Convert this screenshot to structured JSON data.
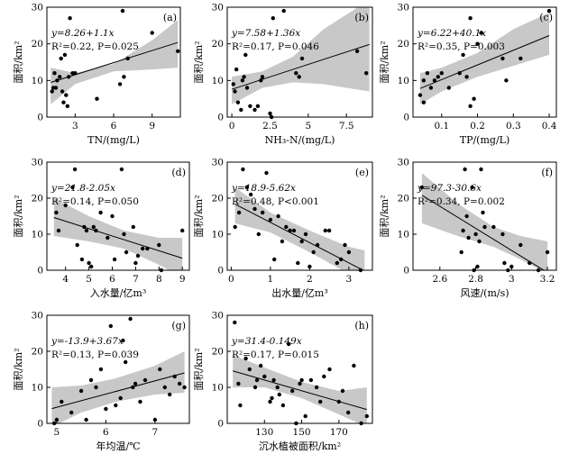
{
  "chart_data": [
    {
      "type": "scatter",
      "panel": "(a)",
      "xlabel": "TN/(mg/L)",
      "ylabel": "面积/km²",
      "xlim": [
        0.8,
        11.2
      ],
      "ylim": [
        0,
        30
      ],
      "xticks": [
        3,
        6,
        9
      ],
      "yticks": [
        0,
        10,
        20,
        30
      ],
      "equation": "y=8.26+1.1x",
      "stats": "R²=0.22, P=0.025",
      "fit": {
        "intercept": 8.26,
        "slope": 1.1
      },
      "band": {
        "x": [
          1.1,
          3,
          6,
          9,
          11
        ],
        "lower": [
          3.5,
          9.0,
          12.5,
          13.0,
          13.5
        ],
        "upper": [
          13.5,
          12.0,
          14.5,
          21.0,
          26.5
        ]
      },
      "points": [
        [
          1.2,
          7
        ],
        [
          1.3,
          8
        ],
        [
          1.4,
          12
        ],
        [
          1.5,
          8
        ],
        [
          1.6,
          10
        ],
        [
          1.8,
          11
        ],
        [
          1.9,
          16
        ],
        [
          2.0,
          7
        ],
        [
          2.1,
          4
        ],
        [
          2.2,
          17
        ],
        [
          2.3,
          6
        ],
        [
          2.4,
          3
        ],
        [
          2.5,
          11
        ],
        [
          2.6,
          27
        ],
        [
          2.8,
          12
        ],
        [
          3.0,
          12
        ],
        [
          4.7,
          5
        ],
        [
          6.5,
          9
        ],
        [
          6.7,
          29
        ],
        [
          6.8,
          11
        ],
        [
          7.1,
          16
        ],
        [
          9.0,
          23
        ],
        [
          11.0,
          18
        ]
      ]
    },
    {
      "type": "scatter",
      "panel": "(b)",
      "xlabel": "NH₃-N/(mg/L)",
      "ylabel": "面积/km²",
      "xlim": [
        -0.3,
        9.2
      ],
      "ylim": [
        0,
        30
      ],
      "xticks": [
        0,
        2.5,
        5,
        7.5
      ],
      "yticks": [
        0,
        10,
        20,
        30
      ],
      "equation": "y=7.58+1.36x",
      "stats": "R²=0.17, P=0.046",
      "fit": {
        "intercept": 7.58,
        "slope": 1.36
      },
      "band": {
        "x": [
          0,
          2,
          4,
          6,
          9
        ],
        "lower": [
          3.5,
          8.0,
          9.5,
          9.0,
          7.0
        ],
        "upper": [
          11.0,
          12.5,
          16.5,
          24.0,
          32.0
        ]
      },
      "points": [
        [
          0.1,
          9
        ],
        [
          0.2,
          7
        ],
        [
          0.3,
          13
        ],
        [
          0.4,
          4
        ],
        [
          0.6,
          2
        ],
        [
          0.7,
          10
        ],
        [
          0.8,
          11
        ],
        [
          0.9,
          17
        ],
        [
          1.0,
          8
        ],
        [
          1.2,
          3
        ],
        [
          1.5,
          2
        ],
        [
          1.7,
          3
        ],
        [
          1.9,
          10
        ],
        [
          2.0,
          11
        ],
        [
          2.5,
          1
        ],
        [
          2.6,
          0
        ],
        [
          2.7,
          27
        ],
        [
          3.4,
          29
        ],
        [
          4.2,
          12
        ],
        [
          4.4,
          11
        ],
        [
          4.6,
          16
        ],
        [
          8.2,
          18
        ],
        [
          8.8,
          12
        ]
      ]
    },
    {
      "type": "scatter",
      "panel": "(c)",
      "xlabel": "TP/(mg/L)",
      "ylabel": "面积/km²",
      "xlim": [
        0.02,
        0.42
      ],
      "ylim": [
        0,
        30
      ],
      "xticks": [
        0.1,
        0.2,
        0.3,
        0.4
      ],
      "yticks": [
        0,
        10,
        20,
        30
      ],
      "equation": "y=6.22+40.1x",
      "stats": "R²=0.35, P=0.003",
      "fit": {
        "intercept": 6.22,
        "slope": 40.1
      },
      "band": {
        "x": [
          0.04,
          0.1,
          0.2,
          0.3,
          0.4
        ],
        "lower": [
          3.5,
          7.0,
          11.0,
          14.0,
          17.0
        ],
        "upper": [
          12.0,
          13.5,
          17.5,
          24.0,
          28.5
        ]
      },
      "points": [
        [
          0.04,
          6
        ],
        [
          0.05,
          4
        ],
        [
          0.05,
          10
        ],
        [
          0.06,
          12
        ],
        [
          0.07,
          8
        ],
        [
          0.08,
          10
        ],
        [
          0.09,
          11
        ],
        [
          0.1,
          12
        ],
        [
          0.12,
          8
        ],
        [
          0.15,
          12
        ],
        [
          0.16,
          17
        ],
        [
          0.17,
          11
        ],
        [
          0.18,
          3
        ],
        [
          0.18,
          27
        ],
        [
          0.19,
          5
        ],
        [
          0.2,
          20
        ],
        [
          0.21,
          23
        ],
        [
          0.27,
          16
        ],
        [
          0.28,
          10
        ],
        [
          0.32,
          16
        ],
        [
          0.4,
          29
        ]
      ]
    },
    {
      "type": "scatter",
      "panel": "(d)",
      "xlabel": "入水量/亿m³",
      "ylabel": "面积/km²",
      "xlim": [
        3.2,
        9.3
      ],
      "ylim": [
        0,
        30
      ],
      "xticks": [
        4,
        5,
        6,
        7,
        8,
        9
      ],
      "yticks": [
        0,
        10,
        20,
        30
      ],
      "equation": "y=21.8-2.05x",
      "stats": "R²=0.14, P=0.050",
      "fit": {
        "intercept": 21.8,
        "slope": -2.05
      },
      "band": {
        "x": [
          3.5,
          5,
          6.5,
          8,
          9
        ],
        "lower": [
          9.5,
          8.0,
          6.0,
          1.5,
          -2.0
        ],
        "upper": [
          20.0,
          15.0,
          11.0,
          9.0,
          9.0
        ]
      },
      "points": [
        [
          3.6,
          16
        ],
        [
          3.7,
          11
        ],
        [
          4.0,
          18
        ],
        [
          4.3,
          23
        ],
        [
          4.4,
          28
        ],
        [
          4.5,
          7
        ],
        [
          4.7,
          3
        ],
        [
          4.8,
          12
        ],
        [
          4.9,
          11
        ],
        [
          5.0,
          2
        ],
        [
          5.1,
          1
        ],
        [
          5.2,
          12
        ],
        [
          5.3,
          11
        ],
        [
          5.5,
          16
        ],
        [
          5.8,
          9
        ],
        [
          6.0,
          15
        ],
        [
          6.1,
          3
        ],
        [
          6.4,
          28
        ],
        [
          6.5,
          10
        ],
        [
          6.6,
          5
        ],
        [
          6.9,
          12
        ],
        [
          7.0,
          2
        ],
        [
          7.1,
          4
        ],
        [
          7.3,
          6
        ],
        [
          7.5,
          6
        ],
        [
          8.0,
          7
        ],
        [
          8.1,
          0
        ],
        [
          9.0,
          11
        ]
      ]
    },
    {
      "type": "scatter",
      "panel": "(e)",
      "xlabel": "出水量/亿m³",
      "ylabel": "面积/km²",
      "xlim": [
        -0.1,
        3.6
      ],
      "ylim": [
        0,
        30
      ],
      "xticks": [
        0,
        1,
        2,
        3
      ],
      "yticks": [
        0,
        10,
        20,
        30
      ],
      "equation": "y=18.9-5.62x",
      "stats": "R²=0.48, P<0.001",
      "fit": {
        "intercept": 18.9,
        "slope": -5.62
      },
      "band": {
        "x": [
          0.1,
          1,
          2,
          3,
          3.4
        ],
        "lower": [
          13.0,
          10.5,
          5.0,
          -1.0,
          -3.0
        ],
        "upper": [
          23.0,
          16.0,
          11.0,
          6.5,
          5.5
        ]
      },
      "points": [
        [
          0.1,
          12
        ],
        [
          0.2,
          16
        ],
        [
          0.3,
          28
        ],
        [
          0.4,
          23
        ],
        [
          0.5,
          21
        ],
        [
          0.6,
          17
        ],
        [
          0.7,
          10
        ],
        [
          0.8,
          16
        ],
        [
          0.9,
          27
        ],
        [
          1.0,
          14
        ],
        [
          1.1,
          3
        ],
        [
          1.2,
          15
        ],
        [
          1.3,
          8
        ],
        [
          1.4,
          12
        ],
        [
          1.5,
          11
        ],
        [
          1.6,
          11
        ],
        [
          1.7,
          2
        ],
        [
          1.8,
          8
        ],
        [
          1.9,
          10
        ],
        [
          2.0,
          1
        ],
        [
          2.1,
          5
        ],
        [
          2.2,
          7
        ],
        [
          2.4,
          11
        ],
        [
          2.5,
          11
        ],
        [
          2.7,
          2
        ],
        [
          2.8,
          3
        ],
        [
          2.9,
          7
        ],
        [
          3.0,
          5
        ],
        [
          3.3,
          0
        ]
      ]
    },
    {
      "type": "scatter",
      "panel": "(f)",
      "xlabel": "风速/(m/s)",
      "ylabel": "面积/km²",
      "xlim": [
        2.45,
        3.25
      ],
      "ylim": [
        0,
        30
      ],
      "xticks": [
        2.6,
        2.8,
        3.0,
        3.2
      ],
      "yticks": [
        0,
        10,
        20,
        30
      ],
      "equation": "y=97.3-30.6x",
      "stats": "R²=0.34, P=0.002",
      "fit": {
        "intercept": 97.3,
        "slope": -30.6
      },
      "band": {
        "x": [
          2.5,
          2.7,
          2.9,
          3.05,
          3.2
        ],
        "lower": [
          13.0,
          9.5,
          6.5,
          3.0,
          -1.0
        ],
        "upper": [
          27.0,
          18.5,
          12.0,
          9.5,
          8.0
        ]
      },
      "points": [
        [
          2.5,
          23
        ],
        [
          2.72,
          5
        ],
        [
          2.73,
          11
        ],
        [
          2.74,
          28
        ],
        [
          2.75,
          15
        ],
        [
          2.76,
          9
        ],
        [
          2.78,
          23
        ],
        [
          2.79,
          0
        ],
        [
          2.8,
          10
        ],
        [
          2.81,
          1
        ],
        [
          2.82,
          8
        ],
        [
          2.83,
          28
        ],
        [
          2.84,
          16
        ],
        [
          2.85,
          12
        ],
        [
          2.9,
          12
        ],
        [
          2.95,
          10
        ],
        [
          2.96,
          2
        ],
        [
          2.98,
          0
        ],
        [
          3.0,
          1
        ],
        [
          3.05,
          7
        ],
        [
          3.1,
          2
        ],
        [
          3.15,
          0
        ],
        [
          3.2,
          5
        ]
      ]
    },
    {
      "type": "scatter",
      "panel": "(g)",
      "xlabel": "年均温/℃",
      "ylabel": "面积/km²",
      "xlim": [
        4.8,
        7.7
      ],
      "ylim": [
        0,
        30
      ],
      "xticks": [
        5,
        6,
        7
      ],
      "yticks": [
        0,
        10,
        20,
        30
      ],
      "equation": "y=-13.9+3.67x",
      "stats": "R²=0.13, P=0.039",
      "fit": {
        "intercept": -13.9,
        "slope": 3.67
      },
      "band": {
        "x": [
          4.9,
          5.5,
          6.2,
          7.0,
          7.6
        ],
        "lower": [
          -1.0,
          3.0,
          6.0,
          8.0,
          8.5
        ],
        "upper": [
          10.0,
          10.5,
          12.5,
          16.0,
          20.0
        ]
      },
      "points": [
        [
          4.95,
          0
        ],
        [
          5.0,
          1
        ],
        [
          5.1,
          6
        ],
        [
          5.3,
          3
        ],
        [
          5.5,
          9
        ],
        [
          5.6,
          1
        ],
        [
          5.7,
          12
        ],
        [
          5.8,
          10
        ],
        [
          5.9,
          15
        ],
        [
          6.0,
          4
        ],
        [
          6.1,
          27
        ],
        [
          6.2,
          5
        ],
        [
          6.3,
          7
        ],
        [
          6.35,
          23
        ],
        [
          6.4,
          17
        ],
        [
          6.5,
          29
        ],
        [
          6.55,
          10
        ],
        [
          6.6,
          11
        ],
        [
          6.7,
          6
        ],
        [
          6.8,
          12
        ],
        [
          7.0,
          1
        ],
        [
          7.1,
          15
        ],
        [
          7.2,
          10
        ],
        [
          7.3,
          8
        ],
        [
          7.4,
          13
        ],
        [
          7.5,
          11
        ],
        [
          7.6,
          10
        ]
      ]
    },
    {
      "type": "scatter",
      "panel": "(h)",
      "xlabel": "沉水植被面积/km²",
      "ylabel": "面积/km²",
      "xlim": [
        110,
        188
      ],
      "ylim": [
        0,
        30
      ],
      "xticks": [
        130,
        150,
        170
      ],
      "yticks": [
        0,
        10,
        20,
        30
      ],
      "equation": "y=31.4-0.149x",
      "stats": "R²=0.17, P=0.015",
      "fit": {
        "intercept": 31.4,
        "slope": -0.149
      },
      "band": {
        "x": [
          113,
          130,
          150,
          170,
          185
        ],
        "lower": [
          10.0,
          10.0,
          7.0,
          2.5,
          -1.0
        ],
        "upper": [
          19.0,
          15.5,
          11.5,
          9.0,
          10.0
        ]
      },
      "points": [
        [
          114,
          28
        ],
        [
          116,
          11
        ],
        [
          117,
          5
        ],
        [
          120,
          18
        ],
        [
          122,
          15
        ],
        [
          125,
          10
        ],
        [
          126,
          12
        ],
        [
          128,
          16
        ],
        [
          130,
          13
        ],
        [
          133,
          6
        ],
        [
          134,
          7
        ],
        [
          135,
          12
        ],
        [
          137,
          10
        ],
        [
          138,
          8
        ],
        [
          140,
          5
        ],
        [
          143,
          22
        ],
        [
          145,
          9
        ],
        [
          147,
          0
        ],
        [
          149,
          11
        ],
        [
          150,
          12
        ],
        [
          152,
          2
        ],
        [
          155,
          12
        ],
        [
          158,
          10
        ],
        [
          160,
          6
        ],
        [
          162,
          13
        ],
        [
          165,
          15
        ],
        [
          170,
          6
        ],
        [
          172,
          9
        ],
        [
          175,
          3
        ],
        [
          178,
          16
        ],
        [
          182,
          0
        ],
        [
          185,
          2
        ]
      ]
    }
  ]
}
